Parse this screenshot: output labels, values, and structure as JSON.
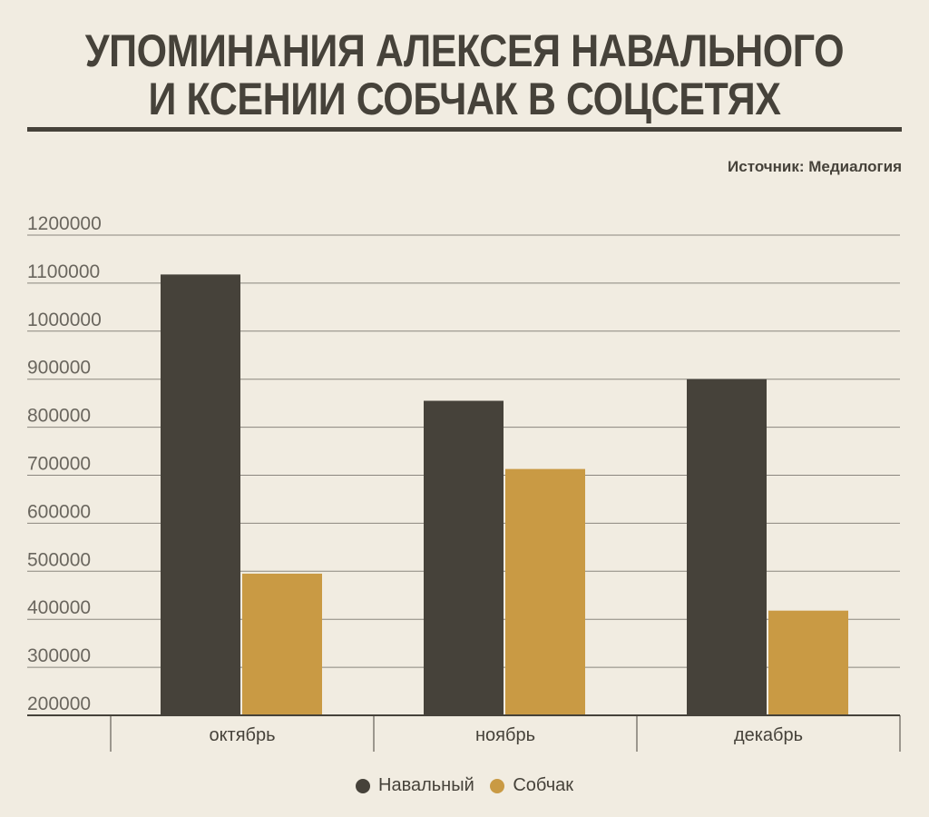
{
  "header": {
    "title_line1": "УПОМИНАНИЯ АЛЕКСЕЯ НАВАЛЬНОГО",
    "title_line2": "И КСЕНИИ СОБЧАК В СОЦСЕТЯХ",
    "source": "Источник: Медиалогия"
  },
  "colors": {
    "background": "#f1ece1",
    "navalny": "#46423a",
    "sobchak": "#c99a44",
    "grid": "#8a867e",
    "text": "#46423a"
  },
  "chart_data": {
    "type": "bar",
    "title": "УПОМИНАНИЯ АЛЕКСЕЯ НАВАЛЬНОГО И КСЕНИИ СОБЧАК В СОЦСЕТЯХ",
    "categories": [
      "октябрь",
      "ноябрь",
      "декабрь"
    ],
    "series": [
      {
        "name": "Навальный",
        "color": "#46423a",
        "values": [
          1118000,
          855000,
          900000
        ]
      },
      {
        "name": "Собчак",
        "color": "#c99a44",
        "values": [
          495000,
          713000,
          418000
        ]
      }
    ],
    "ylim": [
      200000,
      1200000
    ],
    "yticks": [
      "1200000",
      "1100000",
      "1000000",
      "900000",
      "800000",
      "700000",
      "600000",
      "500000",
      "400000",
      "300000",
      "200000"
    ],
    "grid": true,
    "legend_position": "bottom"
  }
}
